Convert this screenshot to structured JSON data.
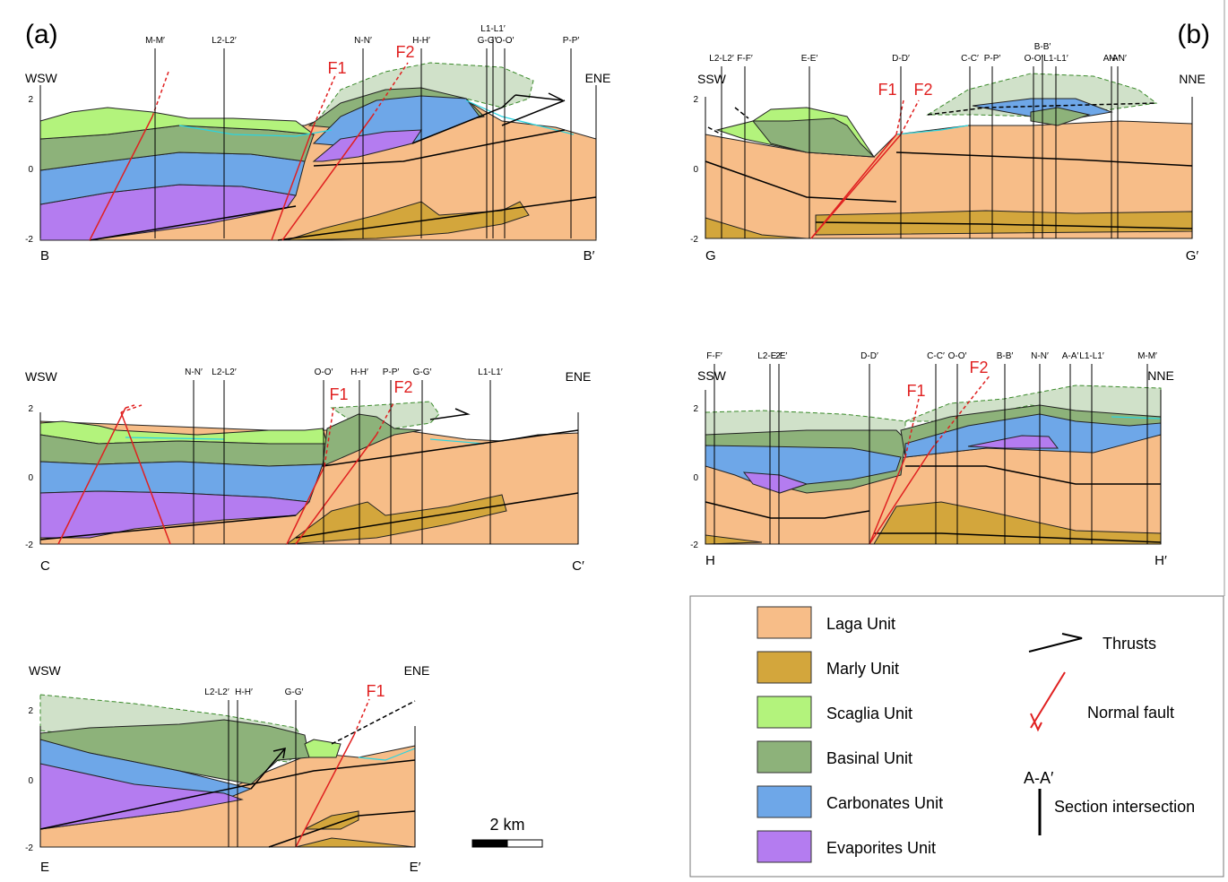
{
  "panel_labels": [
    "(a)",
    "(b)"
  ],
  "sections": [
    {
      "start": "B",
      "end": "B′",
      "left_direction": "WSW",
      "right_direction": "ENE",
      "depth_ticks": [
        2,
        0,
        -2
      ],
      "intersections": [
        "M-M′",
        "L2-L2′",
        "N-N′",
        "H-H′",
        "G-G′",
        "L1-L1′",
        "O-O′",
        "P-P′"
      ],
      "faults": [
        "F1",
        "F2"
      ]
    },
    {
      "start": "G",
      "end": "G′",
      "left_direction": "SSW",
      "right_direction": "NNE",
      "depth_ticks": [
        2,
        0,
        -2
      ],
      "intersections": [
        "L2-L2′",
        "F-F′",
        "E-E′",
        "D-D′",
        "C-C′",
        "P-P′",
        "O-O′",
        "B-B′",
        "L1-L1′",
        "A-A′",
        "N-N′"
      ],
      "faults": [
        "F1",
        "F2"
      ]
    },
    {
      "start": "C",
      "end": "C′",
      "left_direction": "WSW",
      "right_direction": "ENE",
      "depth_ticks": [
        2,
        0,
        -2
      ],
      "intersections": [
        "N-N′",
        "L2-L2′",
        "O-O′",
        "H-H′",
        "P-P′",
        "G-G′",
        "L1-L1′"
      ],
      "faults": [
        "F1",
        "F2"
      ]
    },
    {
      "start": "H",
      "end": "H′",
      "left_direction": "SSW",
      "right_direction": "NNE",
      "depth_ticks": [
        2,
        0,
        -2
      ],
      "intersections": [
        "F-F′",
        "L2-L2′",
        "E-E′",
        "D-D′",
        "C-C′",
        "O-O′",
        "B-B′",
        "N-N′",
        "A-A′",
        "L1-L1′",
        "M-M′"
      ],
      "faults": [
        "F1",
        "F2"
      ]
    },
    {
      "start": "E",
      "end": "E′",
      "left_direction": "WSW",
      "right_direction": "ENE",
      "depth_ticks": [
        2,
        0,
        -2
      ],
      "intersections": [
        "L2-L2′",
        "H-H′",
        "G-G′"
      ],
      "faults": [
        "F1"
      ]
    }
  ],
  "legend": {
    "units": [
      {
        "name": "Laga Unit",
        "color": "#f7bd88"
      },
      {
        "name": "Marly Unit",
        "color": "#d3a63c"
      },
      {
        "name": "Scaglia Unit",
        "color": "#b3f37c"
      },
      {
        "name": "Basinal Unit",
        "color": "#8db27a"
      },
      {
        "name": "Carbonates Unit",
        "color": "#6ea7e8"
      },
      {
        "name": "Evaporites Unit",
        "color": "#b47cf0"
      }
    ],
    "thrusts": "Thrusts",
    "normal_fault": "Normal fault",
    "intersection_example": "A-A′",
    "section_intersection": "Section intersection"
  },
  "scale_bar": "2 km"
}
